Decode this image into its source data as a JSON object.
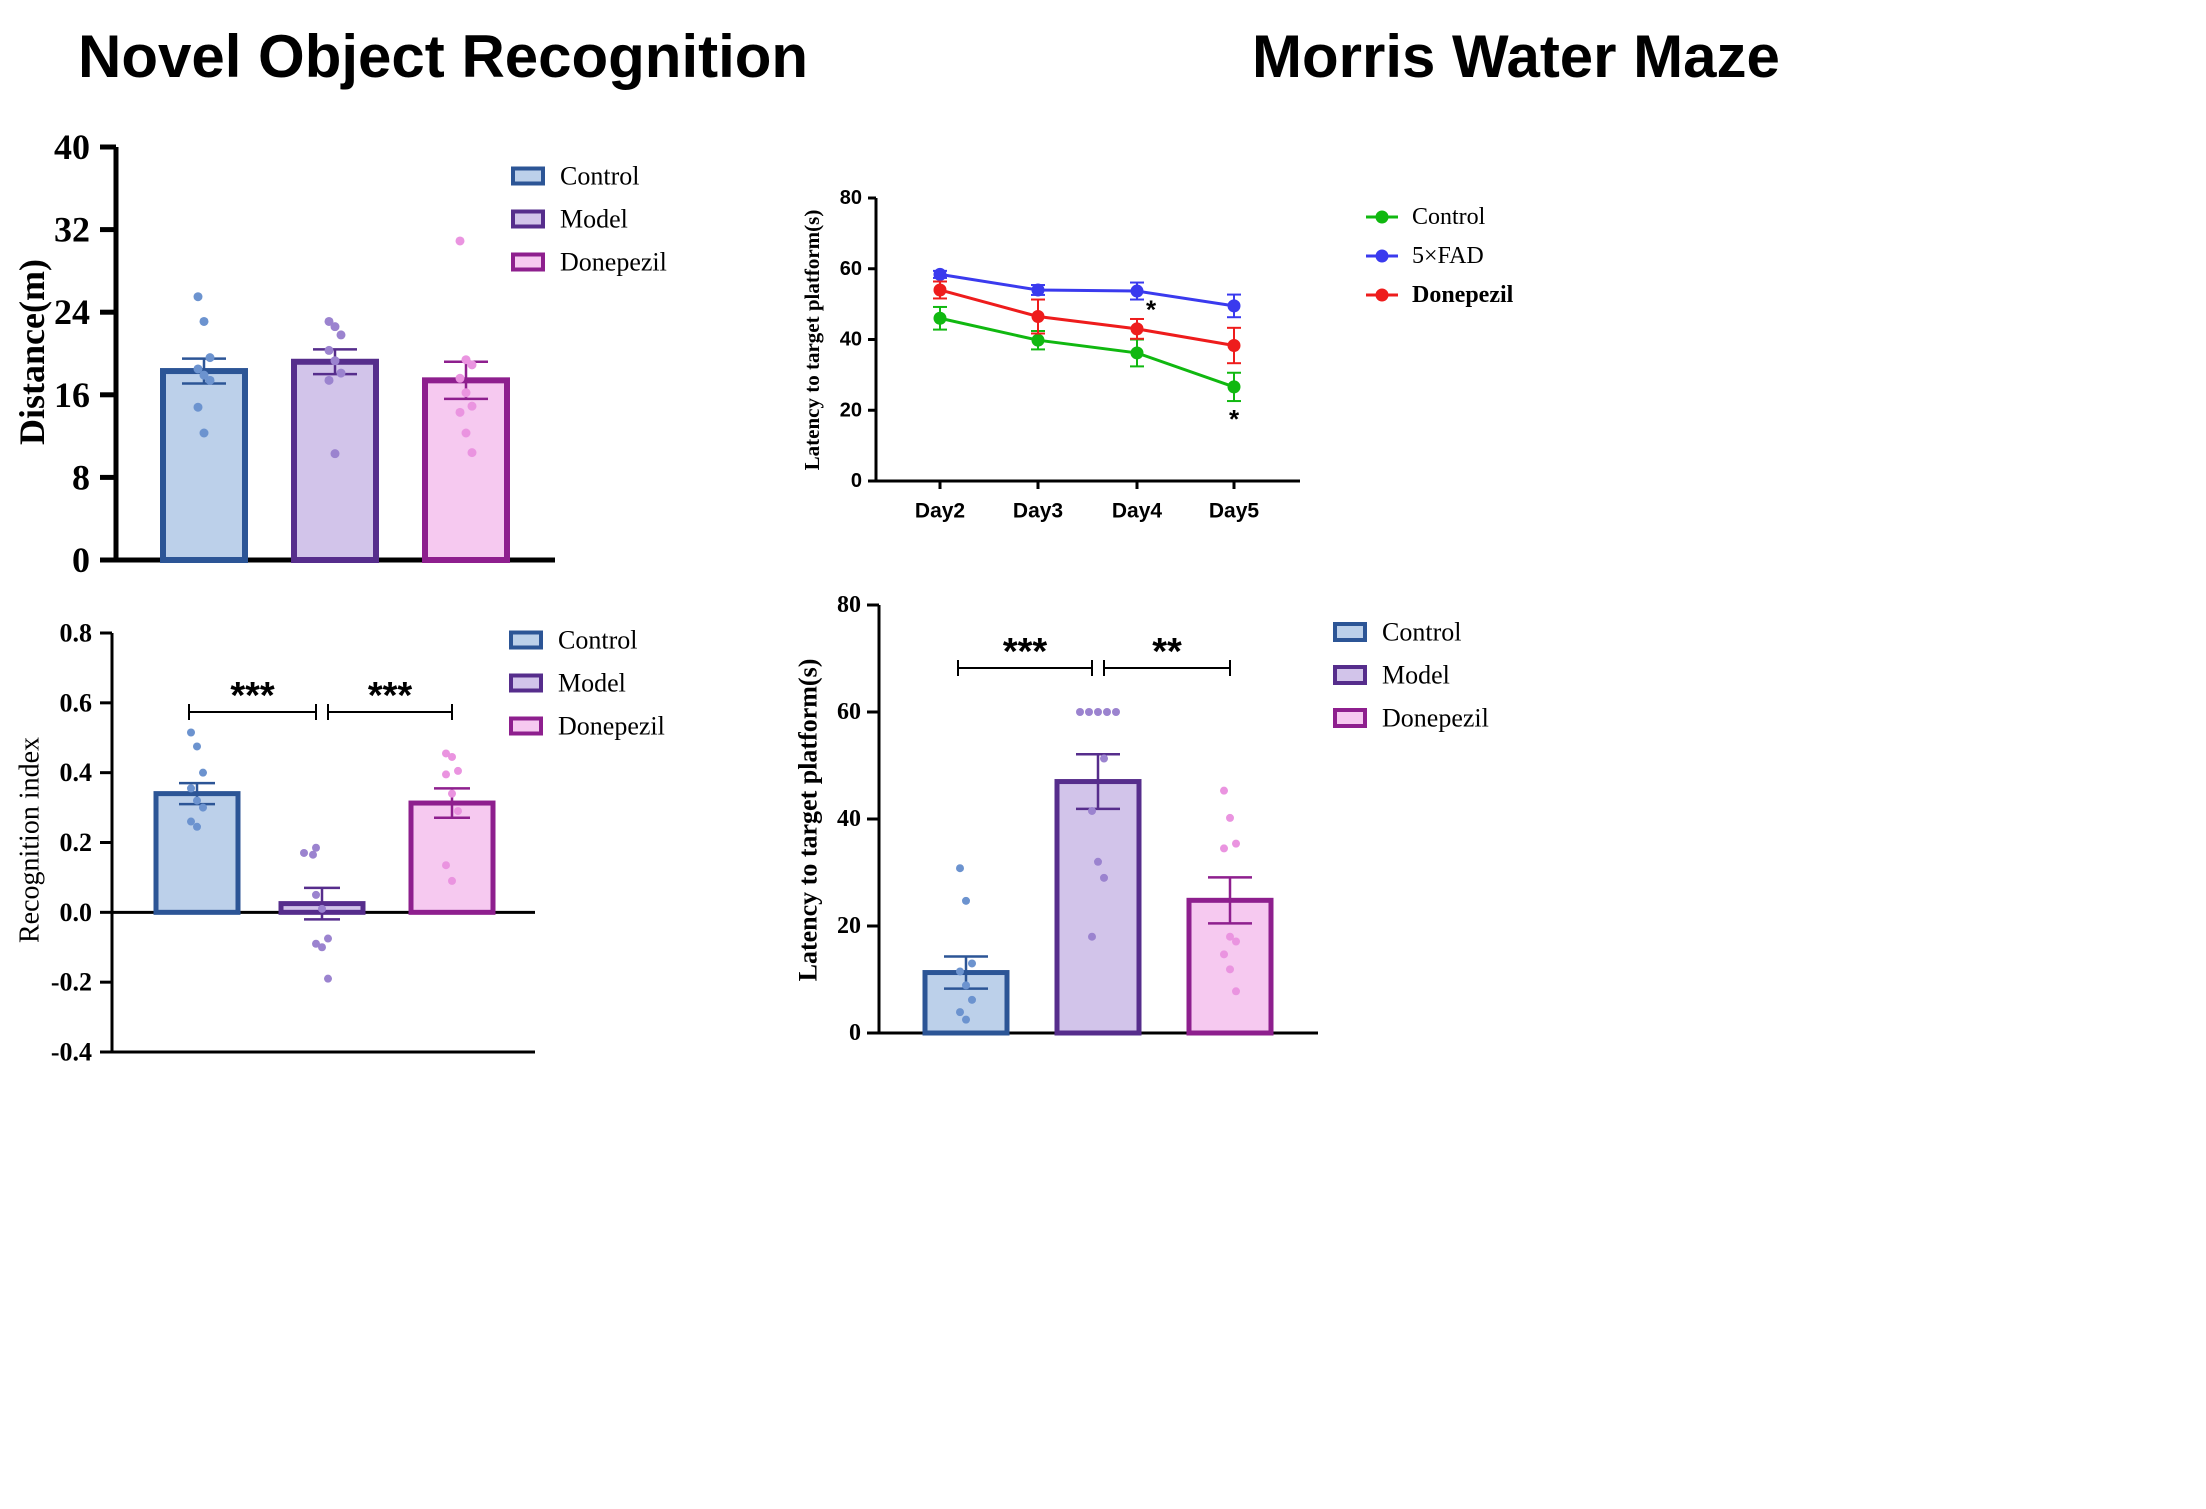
{
  "page": {
    "left_title": "Novel Object Recognition",
    "right_title": "Morris Water Maze"
  },
  "chart_data": [
    {
      "id": "distance",
      "type": "bar",
      "title": "",
      "xlabel": "",
      "ylabel": "Distance(m)",
      "ylim": [
        0,
        40
      ],
      "yticks": [
        0,
        8,
        16,
        24,
        32,
        40
      ],
      "ytick_labels": [
        "0",
        "8",
        "16",
        "24",
        "32",
        "40"
      ],
      "grid": false,
      "legend_position": "top-right",
      "categories": [
        "Control",
        "Model",
        "Donepezil"
      ],
      "values": [
        18.3,
        19.2,
        17.4
      ],
      "sem": [
        1.2,
        1.2,
        1.8
      ],
      "fill_colors": [
        "#bcd0ea",
        "#d2c4ea",
        "#f6c9f0"
      ],
      "edge_colors": [
        "#2c5596",
        "#562d8c",
        "#8e1f8e"
      ],
      "point_colors": [
        "#6c93cf",
        "#9b83cf",
        "#ea94e0"
      ],
      "points": [
        [
          25.5,
          23.1,
          19.6,
          18.5,
          17.9,
          17.4,
          14.8,
          12.3
        ],
        [
          23.1,
          22.6,
          21.8,
          20.3,
          19.3,
          18.1,
          17.4,
          10.3
        ],
        [
          30.9,
          19.4,
          18.9,
          17.6,
          16.2,
          14.9,
          14.3,
          12.3,
          10.4
        ]
      ]
    },
    {
      "id": "recognition",
      "type": "bar",
      "title": "",
      "xlabel": "",
      "ylabel": "Recognition index",
      "ylim": [
        -0.4,
        0.8
      ],
      "yticks": [
        -0.4,
        -0.2,
        0,
        0.2,
        0.4,
        0.6,
        0.8
      ],
      "ytick_labels": [
        "-0.4",
        "-0.2",
        "0.0",
        "0.2",
        "0.4",
        "0.6",
        "0.8"
      ],
      "grid": false,
      "legend_position": "top-right",
      "categories": [
        "Control",
        "Model",
        "Donepezil"
      ],
      "values": [
        0.34,
        0.025,
        0.313
      ],
      "sem": [
        0.03,
        0.045,
        0.042
      ],
      "fill_colors": [
        "#bcd0ea",
        "#d2c4ea",
        "#f6c9f0"
      ],
      "edge_colors": [
        "#2c5596",
        "#562d8c",
        "#8e1f8e"
      ],
      "point_colors": [
        "#6c93cf",
        "#9b83cf",
        "#ea94e0"
      ],
      "points": [
        [
          0.515,
          0.475,
          0.4,
          0.355,
          0.32,
          0.3,
          0.26,
          0.245
        ],
        [
          0.185,
          0.17,
          0.165,
          0.05,
          0.01,
          -0.075,
          -0.09,
          -0.1,
          -0.19
        ],
        [
          0.455,
          0.445,
          0.405,
          0.395,
          0.34,
          0.29,
          0.135,
          0.09
        ]
      ],
      "significance": [
        {
          "from": 0,
          "to": 1,
          "label": "***"
        },
        {
          "from": 1,
          "to": 2,
          "label": "***"
        }
      ]
    },
    {
      "id": "mwm-line",
      "type": "line",
      "title": "",
      "xlabel": "",
      "ylabel": "Latency to target platform(s)",
      "ylim": [
        0,
        80
      ],
      "yticks": [
        0,
        20,
        40,
        60,
        80
      ],
      "ytick_labels": [
        "0",
        "20",
        "40",
        "60",
        "80"
      ],
      "x": [
        "Day2",
        "Day3",
        "Day4",
        "Day5"
      ],
      "grid": false,
      "legend_position": "top-right",
      "series": [
        {
          "name": "Control",
          "color": "#10b810",
          "values": [
            46.0,
            39.8,
            36.2,
            26.6
          ],
          "err": [
            3.2,
            2.6,
            3.8,
            4.0
          ]
        },
        {
          "name": "5×FAD",
          "color": "#3a3aee",
          "values": [
            58.4,
            54.0,
            53.7,
            49.5
          ],
          "err": [
            1.0,
            1.4,
            2.4,
            3.2
          ]
        },
        {
          "name": "Donepezil",
          "color": "#ee1c1c",
          "values": [
            54.0,
            46.5,
            43.0,
            38.3
          ],
          "err": [
            2.4,
            4.8,
            2.8,
            5.0
          ]
        }
      ],
      "annotations": [
        {
          "x": "Day4",
          "y": 48.5,
          "text": "*"
        },
        {
          "x": "Day5",
          "y": 17.5,
          "text": "*"
        }
      ]
    },
    {
      "id": "latency",
      "type": "bar",
      "title": "",
      "xlabel": "",
      "ylabel": "Latency to target platform(s)",
      "ylim": [
        0,
        80
      ],
      "yticks": [
        0,
        20,
        40,
        60,
        80
      ],
      "ytick_labels": [
        "0",
        "20",
        "40",
        "60",
        "80"
      ],
      "grid": false,
      "legend_position": "top-right",
      "categories": [
        "Control",
        "Model",
        "Donepezil"
      ],
      "values": [
        11.3,
        47.0,
        24.8
      ],
      "sem": [
        3.0,
        5.1,
        4.3
      ],
      "fill_colors": [
        "#bcd0ea",
        "#d2c4ea",
        "#f6c9f0"
      ],
      "edge_colors": [
        "#2c5596",
        "#562d8c",
        "#8e1f8e"
      ],
      "point_colors": [
        "#6c93cf",
        "#9b83cf",
        "#ea94e0"
      ],
      "points": [
        [
          30.8,
          24.7,
          13.0,
          11.5,
          8.9,
          6.2,
          3.9,
          2.5
        ],
        [
          60,
          60,
          60,
          60,
          60,
          51.3,
          41.5,
          32.0,
          29.0,
          18.0
        ],
        [
          45.3,
          40.2,
          35.4,
          34.5,
          18.0,
          17.1,
          14.7,
          11.9,
          7.8
        ]
      ],
      "significance": [
        {
          "from": 0,
          "to": 1,
          "label": "***"
        },
        {
          "from": 1,
          "to": 2,
          "label": "**"
        }
      ]
    }
  ]
}
